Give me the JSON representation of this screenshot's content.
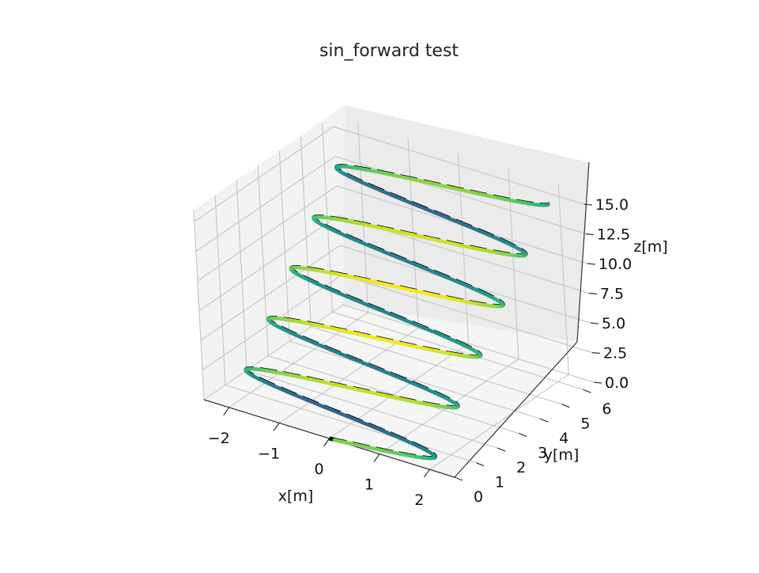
{
  "chart_data": {
    "type": "line",
    "projection": "3d",
    "title": "sin_forward test",
    "xlabel": "x[m]",
    "ylabel": "y[m]",
    "zlabel": "z[m]",
    "xlim": [
      -2.5,
      2.5
    ],
    "ylim": [
      0,
      6.5
    ],
    "zlim": [
      0,
      16
    ],
    "x_ticks": [
      "−2",
      "−1",
      "0",
      "1",
      "2"
    ],
    "y_ticks": [
      "0",
      "1",
      "2",
      "3",
      "4",
      "5",
      "6"
    ],
    "z_ticks": [
      "0.0",
      "2.5",
      "5.0",
      "7.5",
      "10.0",
      "12.5",
      "15.0"
    ],
    "x_tick_values": [
      -2,
      -1,
      0,
      1,
      2
    ],
    "y_tick_values": [
      0,
      1,
      2,
      3,
      4,
      5,
      6
    ],
    "z_tick_values": [
      0,
      2.5,
      5,
      7.5,
      10,
      12.5,
      15
    ],
    "grid": true,
    "legend": "none",
    "reference": {
      "style": "dashed",
      "color": "#000000",
      "x_amplitude": 2.0,
      "y_range": [
        0,
        6
      ],
      "z_range": [
        0,
        15
      ],
      "turns": 5.25
    },
    "actual": {
      "style": "solid",
      "colormap": "viridis",
      "x_amplitude": 2.0,
      "y_range": [
        0,
        6
      ],
      "z_range": [
        0,
        15
      ],
      "turns": 5.25
    },
    "colors": {
      "pane_left": "#f2f2f2",
      "pane_back": "#ebebeb",
      "pane_floor": "#f5f5f5",
      "grid": "#c8c8c8",
      "reference": "#000000"
    }
  }
}
